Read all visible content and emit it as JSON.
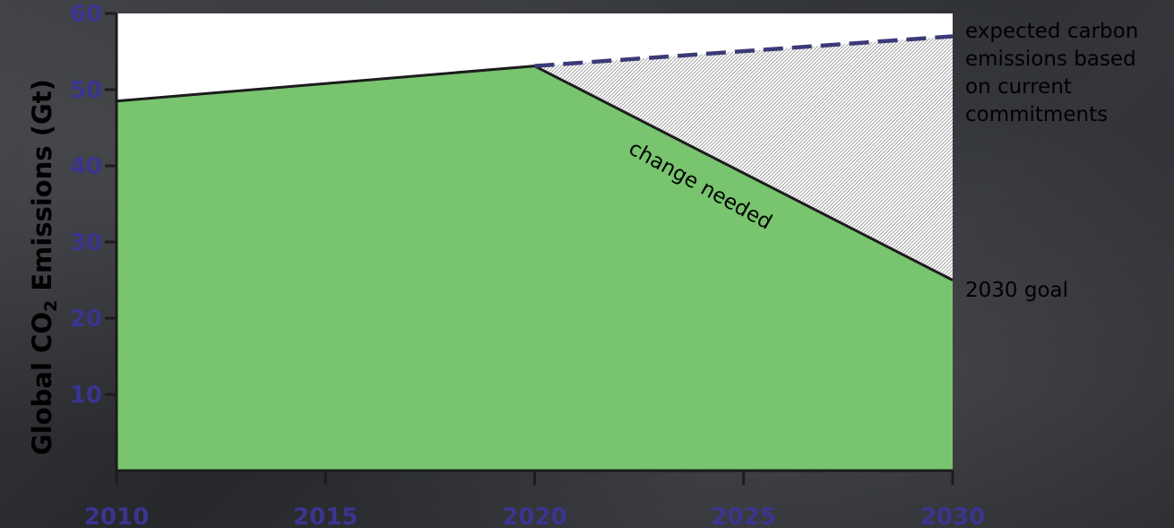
{
  "chart_data": {
    "type": "area",
    "title": "",
    "xlabel": "",
    "ylabel_parts": {
      "pre": "Global CO",
      "sub": "2",
      "post": " Emissions (Gt)"
    },
    "xlim": [
      2010,
      2030
    ],
    "ylim": [
      0,
      60
    ],
    "x_ticks": [
      "2010",
      "2015",
      "2020",
      "2025",
      "2030"
    ],
    "y_ticks": [
      "10",
      "20",
      "30",
      "40",
      "50",
      "60"
    ],
    "series": [
      {
        "name": "change needed",
        "x": [
          2010,
          2020,
          2030
        ],
        "y": [
          48.5,
          53.1,
          25.0
        ]
      },
      {
        "name": "expected carbon emissions based on current commitments",
        "x": [
          2020,
          2030
        ],
        "y": [
          53.1,
          57.0
        ]
      }
    ],
    "annotations": {
      "expected_lines": [
        "expected carbon",
        "emissions based",
        "on current",
        "commitments"
      ],
      "goal": "2030 goal",
      "change": "change needed"
    },
    "colors": {
      "area": "#78c46f",
      "line": "#1c1c1c",
      "expected_dash": "#3b3a78",
      "tick_text": "#3a3590",
      "plot_bg": "#ffffff"
    },
    "grid": false,
    "legend": "none"
  }
}
